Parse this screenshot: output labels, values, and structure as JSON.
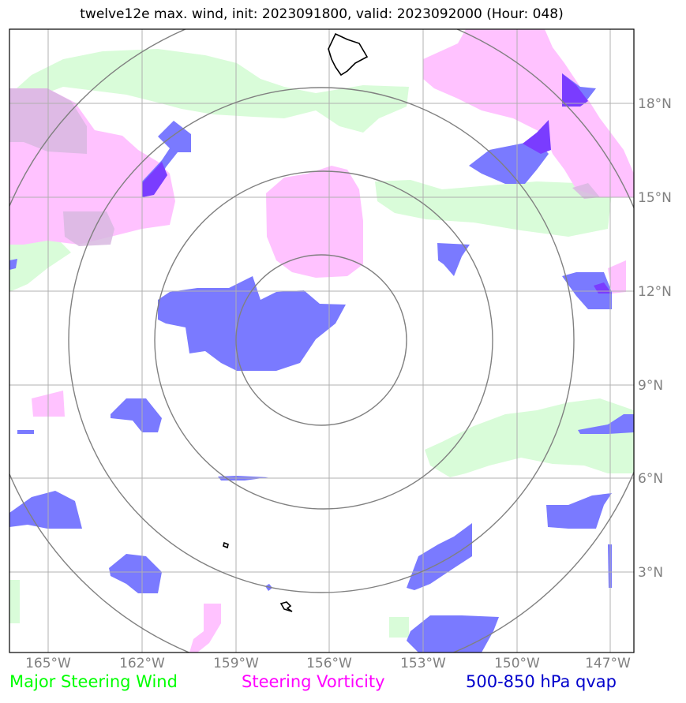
{
  "title": "twelve12e max. wind, init: 2023091800, valid: 2023092000 (Hour: 048)",
  "axes": {
    "lon_labels": [
      "165°W",
      "162°W",
      "159°W",
      "156°W",
      "153°W",
      "150°W",
      "147°W"
    ],
    "lat_labels": [
      "18°N",
      "15°N",
      "12°N",
      "9°N",
      "6°N",
      "3°N"
    ]
  },
  "legend": {
    "wind": "Major Steering Wind",
    "vorticity": "Steering Vorticity",
    "qvap": "500-850 hPa qvap"
  },
  "colors": {
    "wind": "#00ff00",
    "vorticity": "#ff00ff",
    "qvap": "#0000cc",
    "wind_fill": "#d9fcd9",
    "vort_fill": "#ffc2ff",
    "qvap_fill": "#7a7aff"
  }
}
